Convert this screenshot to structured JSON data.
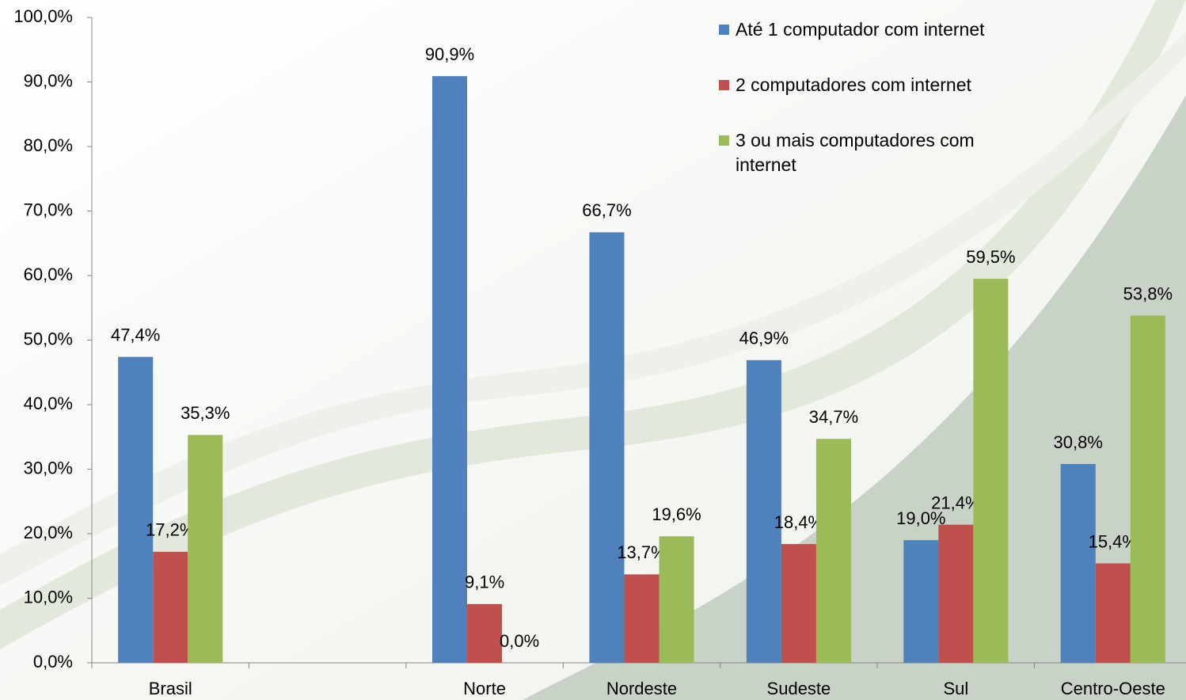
{
  "chart_data": {
    "type": "bar",
    "categories": [
      "Brasil",
      null,
      "Norte",
      "Nordeste",
      "Sudeste",
      "Sul",
      "Centro-Oeste"
    ],
    "series": [
      {
        "name": "Até 1 computador com internet",
        "color": "#4f81bd",
        "values": [
          47.4,
          null,
          90.9,
          66.7,
          46.9,
          19.0,
          30.8
        ],
        "value_labels": [
          "47,4%",
          null,
          "90,9%",
          "66,7%",
          "46,9%",
          "19,0%",
          "30,8%"
        ]
      },
      {
        "name": "2 computadores com internet",
        "color": "#c0504d",
        "values": [
          17.2,
          null,
          9.1,
          13.7,
          18.4,
          21.4,
          15.4
        ],
        "value_labels": [
          "17,2%",
          null,
          "9,1%",
          "13,7%",
          "18,4%",
          "21,4%",
          "15,4%"
        ]
      },
      {
        "name": "3 ou mais computadores com internet",
        "color": "#9bbb59",
        "values": [
          35.3,
          null,
          0.0,
          19.6,
          34.7,
          59.5,
          53.8
        ],
        "value_labels": [
          "35,3%",
          null,
          "0,0%",
          "19,6%",
          "34,7%",
          "59,5%",
          "53,8%"
        ]
      }
    ],
    "ylim": [
      0,
      100
    ],
    "yticks": [
      {
        "value": 0,
        "label": "0,0%"
      },
      {
        "value": 10,
        "label": "10,0%"
      },
      {
        "value": 20,
        "label": "20,0%"
      },
      {
        "value": 30,
        "label": "30,0%"
      },
      {
        "value": 40,
        "label": "40,0%"
      },
      {
        "value": 50,
        "label": "50,0%"
      },
      {
        "value": 60,
        "label": "60,0%"
      },
      {
        "value": 70,
        "label": "70,0%"
      },
      {
        "value": 80,
        "label": "80,0%"
      },
      {
        "value": 90,
        "label": "90,0%"
      },
      {
        "value": 100,
        "label": "100,0%"
      }
    ],
    "legend": "top-right"
  }
}
